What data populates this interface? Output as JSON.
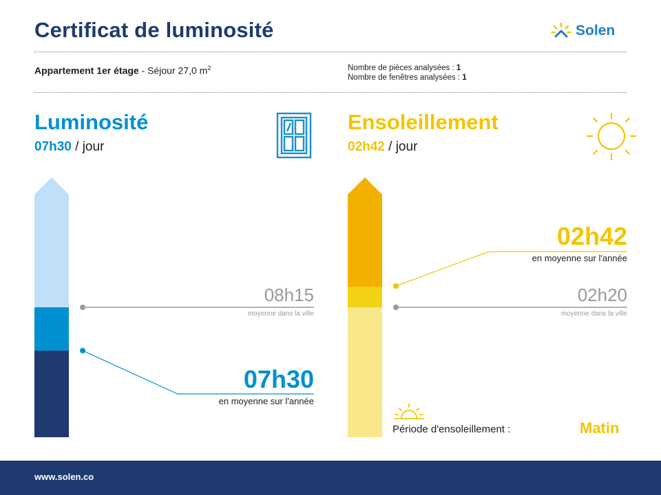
{
  "header": {
    "title": "Certificat de luminosité",
    "brand": "Solen"
  },
  "info": {
    "apartment_bold": "Appartement 1er étage",
    "apartment_rest": " - Séjour 27,0 m",
    "apartment_sup": "2",
    "rooms_label": "Nombre de pièces analysées : ",
    "rooms_value": "1",
    "windows_label": "Nombre de fenêtres analysées : ",
    "windows_value": "1"
  },
  "luminosite": {
    "heading": "Luminosité",
    "daily_value": "07h30",
    "per_day": " / jour",
    "city_value": "08h15",
    "city_label": "moyenne dans la ville",
    "year_value": "07h30",
    "year_label": "en moyenne sur l'année",
    "icon": "window-icon",
    "colors": {
      "light": "#bfe0f8",
      "mid": "#0090d0",
      "dark": "#1e3a6e"
    }
  },
  "ensoleillement": {
    "heading": "Ensoleillement",
    "daily_value": "02h42",
    "per_day": " / jour",
    "city_value": "02h20",
    "city_label": "moyenne dans la ville",
    "year_value": "02h42",
    "year_label": "en moyenne sur l'année",
    "icon": "sun-icon",
    "period_label": "Période d'ensoleillement :",
    "period_value": "Matin",
    "period_icon": "sunrise-icon",
    "colors": {
      "dark": "#f2b000",
      "mid": "#f2d214",
      "light": "#f8e88a"
    }
  },
  "footer": {
    "url": "www.solen.co"
  }
}
